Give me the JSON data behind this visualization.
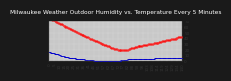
{
  "title": "Milwaukee Weather Outdoor Humidity vs. Temperature Every 5 Minutes",
  "fig_bg": "#1a1a1a",
  "plot_bg": "#c8c8c8",
  "grid_color": "#ffffff",
  "red_color": "#ff0000",
  "blue_color": "#0000cc",
  "red_x": [
    0,
    1,
    2,
    3,
    4,
    5,
    6,
    7,
    8,
    9,
    10,
    11,
    12,
    13,
    14,
    15,
    16,
    17,
    18,
    19,
    20,
    21,
    22,
    23,
    24,
    25,
    26,
    27,
    28,
    29,
    30,
    31,
    32,
    33,
    34,
    35,
    36,
    37,
    38,
    39,
    40,
    41,
    42,
    43,
    44,
    45,
    46,
    47,
    48,
    49,
    50,
    51,
    52,
    53,
    54,
    55,
    56,
    57,
    58,
    59,
    60,
    61,
    62,
    63,
    64,
    65,
    66,
    67,
    68,
    69,
    70,
    71,
    72,
    73,
    74,
    75,
    76,
    77,
    78,
    79,
    80,
    81,
    82,
    83,
    84,
    85,
    86,
    87,
    88,
    89,
    90,
    91,
    92,
    93,
    94,
    95,
    96,
    97,
    98,
    99,
    100,
    101,
    102,
    103,
    104,
    105,
    106,
    107,
    108,
    109,
    110,
    111,
    112,
    113,
    114,
    115,
    116,
    117,
    118,
    119,
    120,
    121,
    122,
    123,
    124,
    125,
    126,
    127,
    128,
    129,
    130,
    131,
    132,
    133,
    134,
    135,
    136,
    137,
    138,
    139,
    140
  ],
  "red_y": [
    75,
    74,
    74,
    73,
    73,
    72,
    71,
    70,
    69,
    68,
    67,
    66,
    65,
    65,
    64,
    63,
    62,
    61,
    60,
    60,
    59,
    58,
    57,
    56,
    55,
    55,
    54,
    53,
    52,
    51,
    50,
    49,
    48,
    48,
    47,
    46,
    46,
    45,
    44,
    43,
    42,
    42,
    41,
    40,
    40,
    39,
    38,
    37,
    36,
    36,
    35,
    34,
    34,
    33,
    32,
    31,
    31,
    30,
    29,
    29,
    28,
    27,
    26,
    26,
    25,
    24,
    23,
    23,
    22,
    22,
    21,
    21,
    20,
    20,
    20,
    19,
    19,
    19,
    19,
    19,
    19,
    19,
    20,
    20,
    21,
    22,
    23,
    23,
    24,
    24,
    25,
    25,
    25,
    26,
    26,
    26,
    27,
    27,
    27,
    28,
    28,
    29,
    29,
    29,
    30,
    30,
    30,
    31,
    31,
    31,
    32,
    32,
    32,
    32,
    33,
    33,
    34,
    34,
    34,
    35,
    35,
    36,
    36,
    37,
    37,
    38,
    38,
    38,
    39,
    39,
    39,
    40,
    40,
    40,
    41,
    41,
    42,
    42,
    42,
    43,
    43
  ],
  "blue_x": [
    0,
    1,
    2,
    3,
    4,
    5,
    6,
    7,
    8,
    9,
    10,
    11,
    12,
    13,
    14,
    15,
    16,
    17,
    18,
    19,
    20,
    21,
    22,
    23,
    24,
    25,
    26,
    27,
    28,
    29,
    30,
    31,
    32,
    33,
    34,
    35,
    36,
    37,
    38,
    39,
    40,
    41,
    42,
    43,
    44,
    45,
    46,
    47,
    48,
    49,
    50,
    51,
    52,
    53,
    54,
    55,
    56,
    57,
    58,
    59,
    60,
    61,
    62,
    63,
    64,
    65,
    66,
    67,
    68,
    69,
    70,
    71,
    72,
    73,
    74,
    75,
    76,
    77,
    78,
    79,
    80,
    81,
    82,
    83,
    84,
    85,
    86,
    87,
    88,
    89,
    90,
    91,
    92,
    93,
    94,
    95,
    96,
    97,
    98,
    99,
    100,
    101,
    102,
    103,
    104,
    105,
    106,
    107,
    108,
    109,
    110,
    111,
    112,
    113,
    114,
    115,
    116,
    117,
    118,
    119,
    120,
    121,
    122,
    123,
    124,
    125,
    126,
    127,
    128,
    129,
    130,
    131,
    132,
    133,
    134,
    135,
    136,
    137,
    138,
    139,
    140
  ],
  "blue_y": [
    16,
    16,
    15,
    15,
    14,
    14,
    13,
    13,
    12,
    12,
    11,
    11,
    10,
    10,
    9,
    9,
    8,
    8,
    7,
    7,
    7,
    6,
    6,
    6,
    5,
    5,
    5,
    5,
    4,
    4,
    4,
    4,
    3,
    3,
    3,
    3,
    3,
    3,
    2,
    2,
    2,
    2,
    2,
    2,
    2,
    2,
    2,
    1,
    1,
    1,
    1,
    1,
    1,
    1,
    1,
    1,
    1,
    1,
    1,
    1,
    1,
    1,
    1,
    1,
    1,
    1,
    1,
    1,
    1,
    1,
    1,
    1,
    1,
    1,
    1,
    1,
    2,
    2,
    2,
    2,
    2,
    2,
    2,
    3,
    3,
    3,
    3,
    3,
    3,
    4,
    4,
    4,
    4,
    4,
    4,
    4,
    4,
    4,
    4,
    4,
    4,
    4,
    4,
    4,
    4,
    4,
    4,
    4,
    4,
    4,
    4,
    5,
    5,
    5,
    5,
    5,
    5,
    5,
    5,
    5,
    5,
    5,
    5,
    5,
    5,
    5,
    5,
    5,
    5,
    5,
    5,
    5,
    5,
    5,
    5,
    5,
    5,
    5,
    5,
    5,
    5
  ],
  "xlim": [
    0,
    140
  ],
  "ylim": [
    0,
    80
  ],
  "yticks": [
    0,
    10,
    20,
    30,
    40,
    50,
    60,
    70,
    80
  ],
  "xtick_count": 28,
  "title_fontsize": 4.2,
  "tick_fontsize": 3.0,
  "title_color": "#ffffff",
  "tick_color": "#333333"
}
